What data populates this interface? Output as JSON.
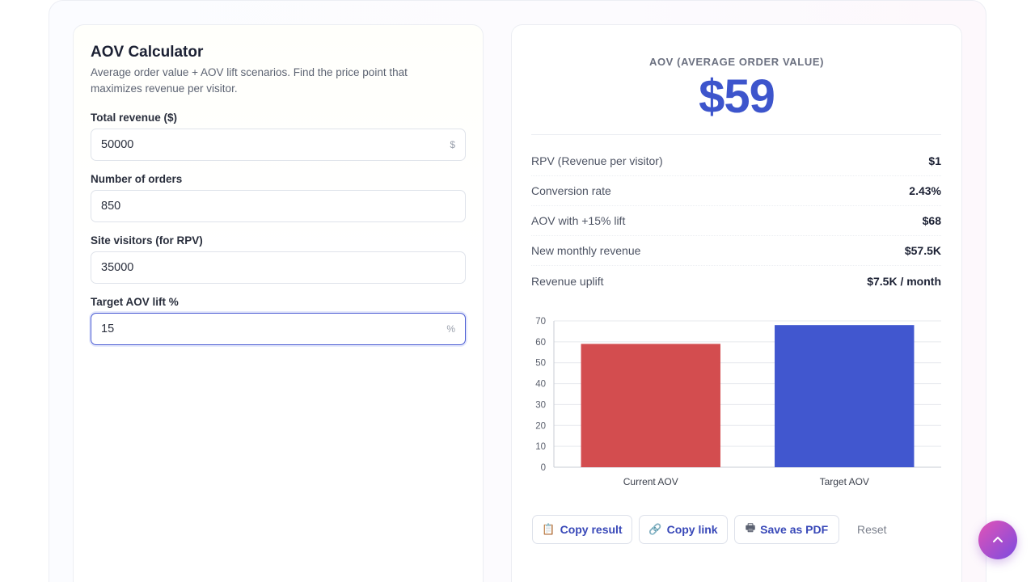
{
  "calculator": {
    "title": "AOV Calculator",
    "subtitle": "Average order value + AOV lift scenarios. Find the price point that maximizes revenue per visitor."
  },
  "fields": {
    "total_revenue": {
      "label": "Total revenue ($)",
      "value": "50000",
      "suffix": "$"
    },
    "orders": {
      "label": "Number of orders",
      "value": "850"
    },
    "visitors": {
      "label": "Site visitors (for RPV)",
      "value": "35000"
    },
    "lift": {
      "label": "Target AOV lift %",
      "value": "15",
      "suffix": "%"
    }
  },
  "result": {
    "label": "AOV (AVERAGE ORDER VALUE)",
    "value": "$59"
  },
  "stats": [
    {
      "key": "RPV (Revenue per visitor)",
      "value": "$1"
    },
    {
      "key": "Conversion rate",
      "value": "2.43%"
    },
    {
      "key": "AOV with +15% lift",
      "value": "$68"
    },
    {
      "key": "New monthly revenue",
      "value": "$57.5K"
    },
    {
      "key": "Revenue uplift",
      "value": "$7.5K / month"
    }
  ],
  "chart_data": {
    "type": "bar",
    "categories": [
      "Current AOV",
      "Target AOV"
    ],
    "values": [
      59,
      68
    ],
    "colors": [
      "#d34d4f",
      "#4157cf"
    ],
    "ylim": [
      0,
      70
    ],
    "yticks": [
      0,
      10,
      20,
      30,
      40,
      50,
      60,
      70
    ],
    "grid": true
  },
  "actions": {
    "copy_result": "Copy result",
    "copy_link": "Copy link",
    "save_pdf": "Save as PDF",
    "reset": "Reset"
  },
  "icons": {
    "clipboard": "clipboard-icon",
    "link": "link-icon",
    "printer": "printer-icon",
    "scroll_top": "chevron-up-icon"
  }
}
